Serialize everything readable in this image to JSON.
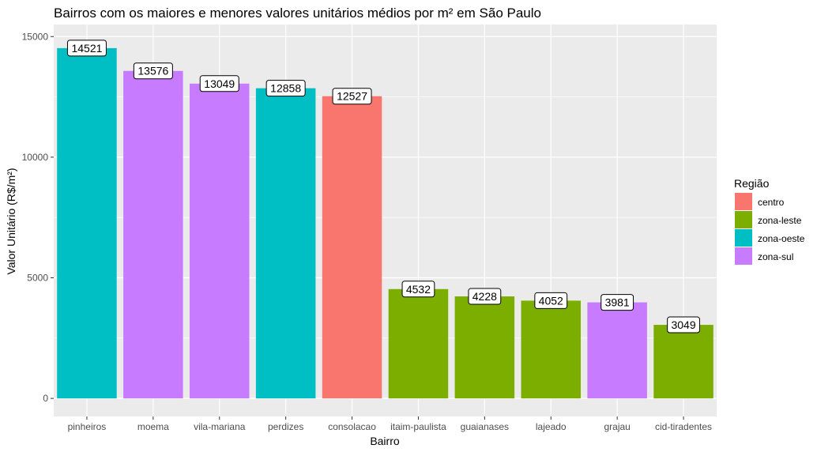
{
  "chart_data": {
    "type": "bar",
    "title": "Bairros com os maiores e menores valores unitários médios por m² em São Paulo",
    "xlabel": "Bairro",
    "ylabel": "Valor Unitário (R$/m²)",
    "ylim": [
      0,
      15500
    ],
    "yticks": [
      0,
      5000,
      10000,
      15000
    ],
    "grid": true,
    "categories": [
      "pinheiros",
      "moema",
      "vila-mariana",
      "perdizes",
      "consolacao",
      "itaim-paulista",
      "guaianases",
      "lajeado",
      "grajau",
      "cid-tiradentes"
    ],
    "values": [
      14521,
      13576,
      13049,
      12858,
      12527,
      4532,
      4228,
      4052,
      3981,
      3049
    ],
    "regions": [
      "zona-oeste",
      "zona-sul",
      "zona-sul",
      "zona-oeste",
      "centro",
      "zona-leste",
      "zona-leste",
      "zona-leste",
      "zona-sul",
      "zona-leste"
    ],
    "legend": {
      "title": "Região",
      "placement": "right",
      "entries": [
        {
          "label": "centro",
          "color": "#F8766D"
        },
        {
          "label": "zona-leste",
          "color": "#7CAE00"
        },
        {
          "label": "zona-oeste",
          "color": "#00BFC4"
        },
        {
          "label": "zona-sul",
          "color": "#C77CFF"
        }
      ]
    }
  }
}
